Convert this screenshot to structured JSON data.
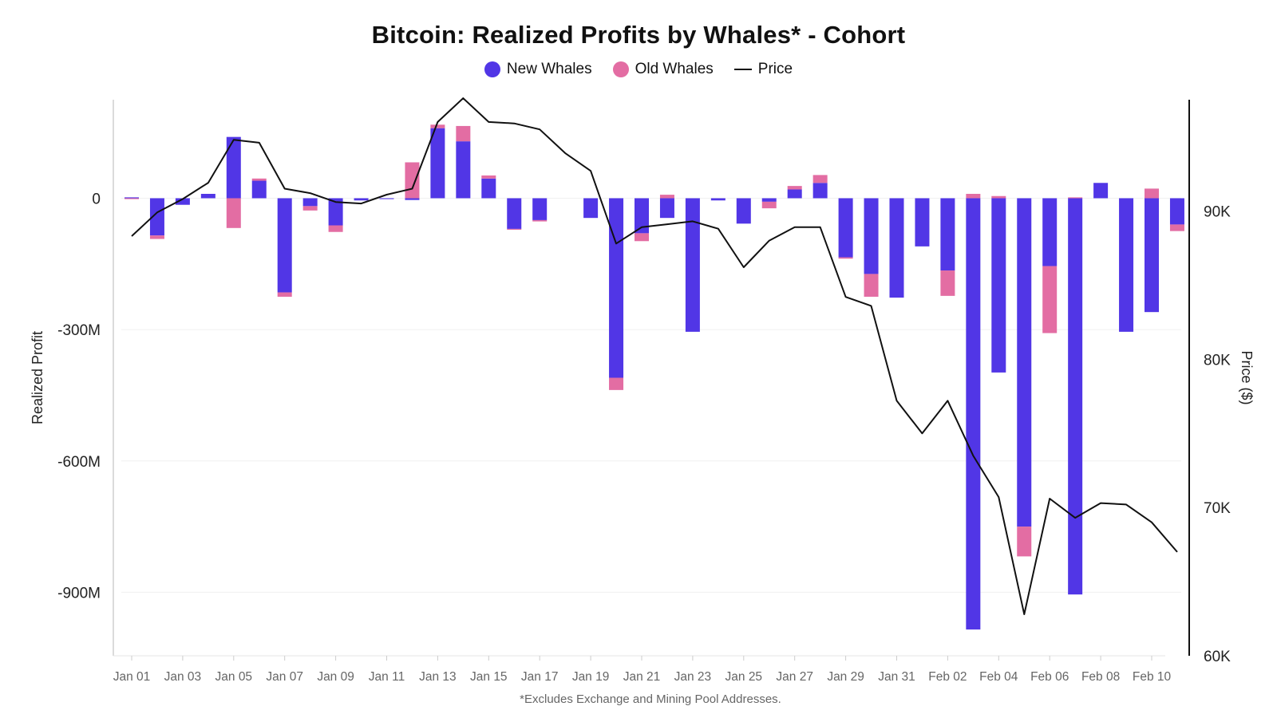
{
  "chart_data": {
    "type": "bar",
    "title": "Bitcoin: Realized Profits by Whales* - Cohort",
    "footnote": "*Excludes Exchange and Mining Pool Addresses.",
    "ylabel_left": "Realized Profit",
    "ylabel_right": "Price ($)",
    "ylim_left": [
      -1045,
      225
    ],
    "ylim_right": [
      60000,
      97500
    ],
    "left_ticks": [
      {
        "value": 0,
        "label": "0"
      },
      {
        "value": -300,
        "label": "-300M"
      },
      {
        "value": -600,
        "label": "-600M"
      },
      {
        "value": -900,
        "label": "-900M"
      }
    ],
    "right_ticks": [
      {
        "value": 90000,
        "label": "90K"
      },
      {
        "value": 80000,
        "label": "80K"
      },
      {
        "value": 70000,
        "label": "70K"
      },
      {
        "value": 60000,
        "label": "60K"
      }
    ],
    "x_tick_labels": [
      "Jan 01",
      "Jan 03",
      "Jan 05",
      "Jan 07",
      "Jan 09",
      "Jan 11",
      "Jan 13",
      "Jan 15",
      "Jan 17",
      "Jan 19",
      "Jan 21",
      "Jan 23",
      "Jan 25",
      "Jan 27",
      "Jan 29",
      "Jan 31",
      "Feb 02",
      "Feb 04",
      "Feb 06",
      "Feb 08",
      "Feb 10"
    ],
    "categories": [
      "Jan 01",
      "Jan 02",
      "Jan 03",
      "Jan 04",
      "Jan 05",
      "Jan 06",
      "Jan 07",
      "Jan 08",
      "Jan 09",
      "Jan 10",
      "Jan 11",
      "Jan 12",
      "Jan 13",
      "Jan 14",
      "Jan 15",
      "Jan 16",
      "Jan 17",
      "Jan 18",
      "Jan 19",
      "Jan 20",
      "Jan 21",
      "Jan 22",
      "Jan 23",
      "Jan 24",
      "Jan 25",
      "Jan 26",
      "Jan 27",
      "Jan 28",
      "Jan 29",
      "Jan 30",
      "Jan 31",
      "Feb 01",
      "Feb 02",
      "Feb 03",
      "Feb 04",
      "Feb 05",
      "Feb 06",
      "Feb 07",
      "Feb 08",
      "Feb 09",
      "Feb 10",
      "Feb 11"
    ],
    "series": [
      {
        "name": "New Whales",
        "color": "#5136e6",
        "values": [
          2,
          -85,
          -15,
          10,
          140,
          40,
          -215,
          -18,
          -62,
          -5,
          -2,
          -4,
          160,
          130,
          45,
          -70,
          -50,
          0,
          -45,
          -410,
          -80,
          -45,
          -305,
          -5,
          -58,
          -8,
          20,
          35,
          -135,
          -173,
          -227,
          -110,
          -165,
          -985,
          -398,
          -750,
          -155,
          -905,
          35,
          -305,
          -260,
          -60
        ]
      },
      {
        "name": "Old Whales",
        "color": "#e36da3",
        "values": [
          -2,
          -8,
          0,
          0,
          -68,
          5,
          -10,
          -10,
          -15,
          0,
          0,
          82,
          8,
          35,
          7,
          -2,
          -3,
          0,
          0,
          -28,
          -18,
          8,
          0,
          0,
          0,
          -15,
          8,
          18,
          -3,
          -52,
          0,
          0,
          -58,
          10,
          5,
          -68,
          -153,
          2,
          0,
          0,
          22,
          -15
        ]
      }
    ],
    "price": {
      "name": "Price",
      "color": "#111111",
      "values": [
        88300,
        89900,
        90800,
        91900,
        94800,
        94600,
        91500,
        91200,
        90600,
        90500,
        91100,
        91500,
        96000,
        97600,
        96000,
        95900,
        95500,
        93900,
        92700,
        87800,
        88900,
        89100,
        89300,
        88800,
        86200,
        88000,
        88900,
        88900,
        84200,
        83600,
        77200,
        75000,
        77200,
        73500,
        70700,
        62800,
        70600,
        69300,
        70300,
        70200,
        69000,
        67000
      ]
    }
  }
}
